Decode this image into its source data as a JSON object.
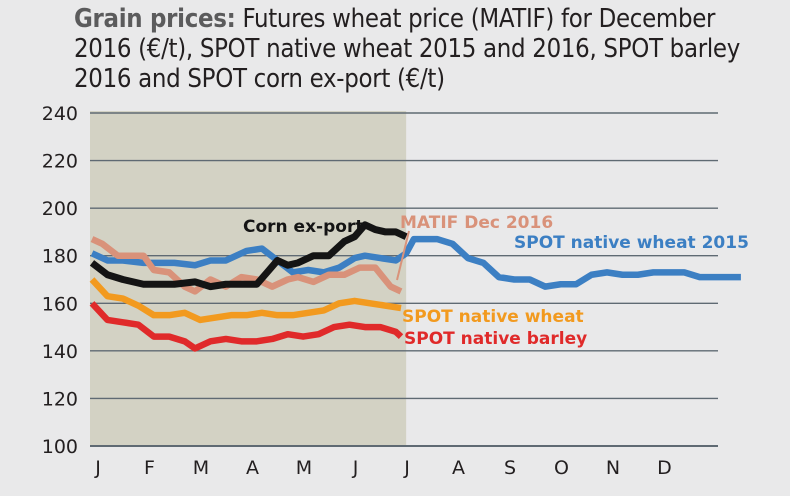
{
  "title": {
    "bold": "Grain prices:",
    "rest": "Futures wheat price (MATIF) for December 2016 (€/t), SPOT native wheat 2015 and 2016, SPOT barley 2016 and SPOT corn ex-port (€/t)"
  },
  "chart_data": {
    "type": "line",
    "title": "Grain prices: Futures wheat price (MATIF) for December 2016 (€/t), SPOT native wheat 2015 and 2016, SPOT barley 2016 and SPOT corn ex-port (€/t)",
    "xlabel": "",
    "ylabel": "",
    "ylim": [
      100,
      240
    ],
    "yticks": [
      100,
      120,
      140,
      160,
      180,
      200,
      220,
      240
    ],
    "xlim": [
      0,
      12.6
    ],
    "months": [
      "J",
      "F",
      "M",
      "A",
      "M",
      "J",
      "J",
      "A",
      "S",
      "O",
      "N",
      "D"
    ],
    "shaded_region": {
      "from": 0,
      "to": 6.1
    },
    "grid": "horizontal",
    "colors": {
      "background": "#e9e9ea",
      "shade": "#d3d2c4",
      "grid": "#5f6a73",
      "corn": "#141414",
      "matif": "#d9927a",
      "wheat2015": "#3c7fc3",
      "wheat2016": "#f29a1f",
      "barley": "#e02a2a"
    },
    "series": [
      {
        "key": "wheat2015",
        "name": "SPOT native wheat 2015",
        "x": [
          0,
          0.3,
          0.6,
          1,
          1.3,
          1.6,
          2,
          2.3,
          2.6,
          3,
          3.3,
          3.6,
          3.9,
          4.2,
          4.5,
          4.8,
          5.1,
          5.3,
          5.6,
          5.9,
          6.1,
          6.25,
          6.4,
          6.7,
          7.0,
          7.3,
          7.6,
          7.9,
          8.2,
          8.5,
          8.8,
          9.1,
          9.4,
          9.7,
          10.0,
          10.3,
          10.6,
          10.9,
          11.2,
          11.5,
          11.8,
          12.1,
          12.6
        ],
        "y": [
          181,
          178,
          178,
          177,
          177,
          177,
          176,
          178,
          178,
          182,
          183,
          178,
          173,
          174,
          173,
          175,
          179,
          180,
          179,
          178,
          181,
          187,
          187,
          187,
          185,
          179,
          177,
          171,
          170,
          170,
          167,
          168,
          168,
          172,
          173,
          172,
          172,
          173,
          173,
          173,
          171,
          171,
          171
        ]
      },
      {
        "key": "matif",
        "name": "MATIF Dec 2016",
        "x": [
          0,
          0.2,
          0.5,
          0.8,
          1,
          1.2,
          1.5,
          1.8,
          2,
          2.3,
          2.6,
          2.9,
          3.2,
          3.5,
          3.8,
          4.0,
          4.3,
          4.6,
          4.9,
          5.2,
          5.5,
          5.8,
          6.0
        ],
        "y": [
          187,
          185,
          180,
          180,
          180,
          174,
          173,
          167,
          165,
          170,
          167,
          171,
          170,
          167,
          170,
          171,
          169,
          172,
          172,
          175,
          175,
          167,
          165
        ]
      },
      {
        "key": "corn",
        "name": "Corn ex-port",
        "x": [
          0,
          0.3,
          0.6,
          1,
          1.3,
          1.6,
          2,
          2.3,
          2.6,
          2.9,
          3.2,
          3.4,
          3.6,
          3.8,
          4.0,
          4.3,
          4.6,
          4.9,
          5.1,
          5.3,
          5.5,
          5.7,
          5.9,
          6.1
        ],
        "y": [
          177,
          172,
          170,
          168,
          168,
          168,
          169,
          167,
          168,
          168,
          168,
          173,
          178,
          176,
          177,
          180,
          180,
          186,
          188,
          193,
          191,
          190,
          190,
          188
        ]
      },
      {
        "key": "wheat2016",
        "name": "SPOT native wheat",
        "x": [
          0,
          0.3,
          0.6,
          0.9,
          1.2,
          1.5,
          1.8,
          2.1,
          2.4,
          2.7,
          3.0,
          3.3,
          3.6,
          3.9,
          4.2,
          4.5,
          4.8,
          5.1,
          5.4,
          5.7,
          6.0
        ],
        "y": [
          170,
          163,
          162,
          159,
          155,
          155,
          156,
          153,
          154,
          155,
          155,
          156,
          155,
          155,
          156,
          157,
          160,
          161,
          160,
          159,
          158
        ]
      },
      {
        "key": "barley",
        "name": "SPOT native barley",
        "x": [
          0,
          0.3,
          0.6,
          0.9,
          1.2,
          1.5,
          1.8,
          2.0,
          2.3,
          2.6,
          2.9,
          3.2,
          3.5,
          3.8,
          4.1,
          4.4,
          4.7,
          5.0,
          5.3,
          5.6,
          5.9,
          6.0
        ],
        "y": [
          160,
          153,
          152,
          151,
          146,
          146,
          144,
          141,
          144,
          145,
          144,
          144,
          145,
          147,
          146,
          147,
          150,
          151,
          150,
          150,
          148,
          146
        ]
      }
    ],
    "labels": {
      "corn": "Corn ex-port",
      "matif": "MATIF Dec 2016",
      "wheat2015": "SPOT native wheat 2015",
      "wheat2016": "SPOT native wheat",
      "barley": "SPOT native barley"
    }
  }
}
